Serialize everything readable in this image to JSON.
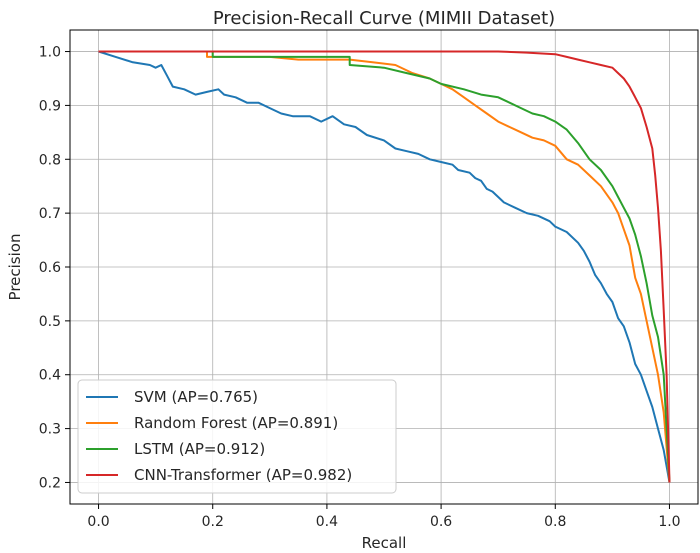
{
  "chart_data": {
    "type": "line",
    "title": "Precision-Recall Curve (MIMII Dataset)",
    "xlabel": "Recall",
    "ylabel": "Precision",
    "xlim": [
      -0.05,
      1.05
    ],
    "ylim": [
      0.16,
      1.04
    ],
    "xticks": [
      "0.0",
      "0.2",
      "0.4",
      "0.6",
      "0.8",
      "1.0"
    ],
    "xtick_values": [
      0.0,
      0.2,
      0.4,
      0.6,
      0.8,
      1.0
    ],
    "yticks": [
      "0.2",
      "0.3",
      "0.4",
      "0.5",
      "0.6",
      "0.7",
      "0.8",
      "0.9",
      "1.0"
    ],
    "ytick_values": [
      0.2,
      0.3,
      0.4,
      0.5,
      0.6,
      0.7,
      0.8,
      0.9,
      1.0
    ],
    "grid": true,
    "legend_position": "lower-left",
    "series": [
      {
        "name": "SVM (AP=0.765)",
        "color": "#1f77b4",
        "points": [
          [
            0.0,
            1.0
          ],
          [
            0.03,
            0.99
          ],
          [
            0.06,
            0.98
          ],
          [
            0.09,
            0.975
          ],
          [
            0.1,
            0.97
          ],
          [
            0.11,
            0.975
          ],
          [
            0.12,
            0.955
          ],
          [
            0.13,
            0.935
          ],
          [
            0.15,
            0.93
          ],
          [
            0.17,
            0.92
          ],
          [
            0.19,
            0.925
          ],
          [
            0.21,
            0.93
          ],
          [
            0.22,
            0.92
          ],
          [
            0.24,
            0.915
          ],
          [
            0.26,
            0.905
          ],
          [
            0.28,
            0.905
          ],
          [
            0.3,
            0.895
          ],
          [
            0.32,
            0.885
          ],
          [
            0.34,
            0.88
          ],
          [
            0.37,
            0.88
          ],
          [
            0.39,
            0.87
          ],
          [
            0.41,
            0.88
          ],
          [
            0.43,
            0.865
          ],
          [
            0.45,
            0.86
          ],
          [
            0.47,
            0.845
          ],
          [
            0.5,
            0.835
          ],
          [
            0.52,
            0.82
          ],
          [
            0.54,
            0.815
          ],
          [
            0.56,
            0.81
          ],
          [
            0.58,
            0.8
          ],
          [
            0.6,
            0.795
          ],
          [
            0.62,
            0.79
          ],
          [
            0.63,
            0.78
          ],
          [
            0.65,
            0.775
          ],
          [
            0.66,
            0.765
          ],
          [
            0.67,
            0.76
          ],
          [
            0.68,
            0.745
          ],
          [
            0.69,
            0.74
          ],
          [
            0.7,
            0.73
          ],
          [
            0.71,
            0.72
          ],
          [
            0.72,
            0.715
          ],
          [
            0.73,
            0.71
          ],
          [
            0.75,
            0.7
          ],
          [
            0.77,
            0.695
          ],
          [
            0.79,
            0.685
          ],
          [
            0.8,
            0.675
          ],
          [
            0.82,
            0.665
          ],
          [
            0.84,
            0.645
          ],
          [
            0.85,
            0.63
          ],
          [
            0.86,
            0.61
          ],
          [
            0.87,
            0.585
          ],
          [
            0.88,
            0.57
          ],
          [
            0.89,
            0.55
          ],
          [
            0.9,
            0.535
          ],
          [
            0.91,
            0.505
          ],
          [
            0.92,
            0.49
          ],
          [
            0.93,
            0.46
          ],
          [
            0.94,
            0.42
          ],
          [
            0.95,
            0.4
          ],
          [
            0.96,
            0.37
          ],
          [
            0.97,
            0.34
          ],
          [
            0.98,
            0.3
          ],
          [
            0.99,
            0.26
          ],
          [
            1.0,
            0.2
          ]
        ]
      },
      {
        "name": "Random Forest (AP=0.891)",
        "color": "#ff7f0e",
        "points": [
          [
            0.0,
            1.0
          ],
          [
            0.19,
            1.0
          ],
          [
            0.19,
            0.99
          ],
          [
            0.3,
            0.99
          ],
          [
            0.35,
            0.985
          ],
          [
            0.4,
            0.985
          ],
          [
            0.44,
            0.985
          ],
          [
            0.48,
            0.98
          ],
          [
            0.52,
            0.975
          ],
          [
            0.55,
            0.96
          ],
          [
            0.58,
            0.95
          ],
          [
            0.6,
            0.94
          ],
          [
            0.62,
            0.93
          ],
          [
            0.64,
            0.915
          ],
          [
            0.66,
            0.9
          ],
          [
            0.68,
            0.885
          ],
          [
            0.7,
            0.87
          ],
          [
            0.72,
            0.86
          ],
          [
            0.74,
            0.85
          ],
          [
            0.76,
            0.84
          ],
          [
            0.78,
            0.835
          ],
          [
            0.8,
            0.825
          ],
          [
            0.82,
            0.8
          ],
          [
            0.84,
            0.79
          ],
          [
            0.86,
            0.77
          ],
          [
            0.88,
            0.75
          ],
          [
            0.9,
            0.72
          ],
          [
            0.91,
            0.7
          ],
          [
            0.92,
            0.67
          ],
          [
            0.93,
            0.64
          ],
          [
            0.94,
            0.58
          ],
          [
            0.95,
            0.55
          ],
          [
            0.96,
            0.5
          ],
          [
            0.97,
            0.45
          ],
          [
            0.98,
            0.4
          ],
          [
            0.99,
            0.33
          ],
          [
            1.0,
            0.2
          ]
        ]
      },
      {
        "name": "LSTM (AP=0.912)",
        "color": "#2ca02c",
        "points": [
          [
            0.0,
            1.0
          ],
          [
            0.2,
            1.0
          ],
          [
            0.2,
            0.99
          ],
          [
            0.3,
            0.99
          ],
          [
            0.35,
            0.99
          ],
          [
            0.39,
            0.99
          ],
          [
            0.44,
            0.99
          ],
          [
            0.44,
            0.975
          ],
          [
            0.5,
            0.97
          ],
          [
            0.54,
            0.96
          ],
          [
            0.58,
            0.95
          ],
          [
            0.6,
            0.94
          ],
          [
            0.64,
            0.93
          ],
          [
            0.67,
            0.92
          ],
          [
            0.7,
            0.915
          ],
          [
            0.72,
            0.905
          ],
          [
            0.74,
            0.895
          ],
          [
            0.76,
            0.885
          ],
          [
            0.78,
            0.88
          ],
          [
            0.8,
            0.87
          ],
          [
            0.82,
            0.855
          ],
          [
            0.84,
            0.83
          ],
          [
            0.86,
            0.8
          ],
          [
            0.88,
            0.78
          ],
          [
            0.9,
            0.75
          ],
          [
            0.91,
            0.73
          ],
          [
            0.92,
            0.71
          ],
          [
            0.93,
            0.69
          ],
          [
            0.94,
            0.66
          ],
          [
            0.95,
            0.62
          ],
          [
            0.96,
            0.57
          ],
          [
            0.97,
            0.51
          ],
          [
            0.98,
            0.47
          ],
          [
            0.99,
            0.4
          ],
          [
            1.0,
            0.2
          ]
        ]
      },
      {
        "name": "CNN-Transformer (AP=0.982)",
        "color": "#d62728",
        "points": [
          [
            0.0,
            1.0
          ],
          [
            0.7,
            1.0
          ],
          [
            0.75,
            0.998
          ],
          [
            0.8,
            0.995
          ],
          [
            0.82,
            0.99
          ],
          [
            0.84,
            0.985
          ],
          [
            0.86,
            0.98
          ],
          [
            0.88,
            0.975
          ],
          [
            0.9,
            0.97
          ],
          [
            0.91,
            0.96
          ],
          [
            0.92,
            0.95
          ],
          [
            0.93,
            0.935
          ],
          [
            0.94,
            0.915
          ],
          [
            0.95,
            0.895
          ],
          [
            0.96,
            0.86
          ],
          [
            0.97,
            0.82
          ],
          [
            0.975,
            0.77
          ],
          [
            0.98,
            0.71
          ],
          [
            0.985,
            0.63
          ],
          [
            0.99,
            0.52
          ],
          [
            0.995,
            0.4
          ],
          [
            1.0,
            0.2
          ]
        ]
      }
    ]
  }
}
